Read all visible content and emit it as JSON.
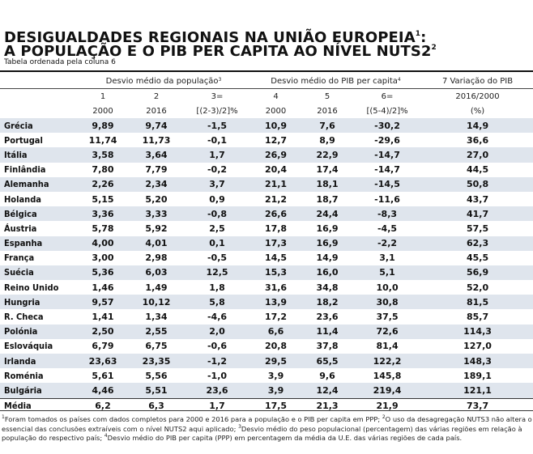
{
  "title": {
    "line1": "DESIGUALDADES REGIONAIS NA UNIÃO EUROPEIA",
    "line1_sup": "1",
    "line1_suffix": ":",
    "line2": "A POPULAÇÃO E O PIB PER CAPITA AO NÍVEL NUTS2",
    "line2_sup": "2"
  },
  "subtitle": "Tabela ordenada pela coluna 6",
  "headers": {
    "group_pop": "Desvio médio da população",
    "group_pop_sup": "3",
    "group_pib": "Desvio médio do PIB per capita",
    "group_pib_sup": "4",
    "group_var": "7 Variação do PIB",
    "col_numbers": [
      "1",
      "2",
      "3=",
      "4",
      "5",
      "6=",
      "2016/2000"
    ],
    "col_sub": [
      "2000",
      "2016",
      "[(2-3)/2]%",
      "2000",
      "2016",
      "[(5-4)/2]%",
      "(%)"
    ]
  },
  "rows": [
    {
      "country": "Grécia",
      "v": [
        "9,89",
        "9,74",
        "-1,5",
        "10,9",
        "7,6",
        "-30,2",
        "14,9"
      ]
    },
    {
      "country": "Portugal",
      "v": [
        "11,74",
        "11,73",
        "-0,1",
        "12,7",
        "8,9",
        "-29,6",
        "36,6"
      ]
    },
    {
      "country": "Itália",
      "v": [
        "3,58",
        "3,64",
        "1,7",
        "26,9",
        "22,9",
        "-14,7",
        "27,0"
      ]
    },
    {
      "country": "Finlândia",
      "v": [
        "7,80",
        "7,79",
        "-0,2",
        "20,4",
        "17,4",
        "-14,7",
        "44,5"
      ]
    },
    {
      "country": "Alemanha",
      "v": [
        "2,26",
        "2,34",
        "3,7",
        "21,1",
        "18,1",
        "-14,5",
        "50,8"
      ]
    },
    {
      "country": "Holanda",
      "v": [
        "5,15",
        "5,20",
        "0,9",
        "21,2",
        "18,7",
        "-11,6",
        "43,7"
      ]
    },
    {
      "country": "Bélgica",
      "v": [
        "3,36",
        "3,33",
        "-0,8",
        "26,6",
        "24,4",
        "-8,3",
        "41,7"
      ]
    },
    {
      "country": "Áustria",
      "v": [
        "5,78",
        "5,92",
        "2,5",
        "17,8",
        "16,9",
        "-4,5",
        "57,5"
      ]
    },
    {
      "country": "Espanha",
      "v": [
        "4,00",
        "4,01",
        "0,1",
        "17,3",
        "16,9",
        "-2,2",
        "62,3"
      ]
    },
    {
      "country": "França",
      "v": [
        "3,00",
        "2,98",
        "-0,5",
        "14,5",
        "14,9",
        "3,1",
        "45,5"
      ]
    },
    {
      "country": "Suécia",
      "v": [
        "5,36",
        "6,03",
        "12,5",
        "15,3",
        "16,0",
        "5,1",
        "56,9"
      ]
    },
    {
      "country": "Reino Unido",
      "v": [
        "1,46",
        "1,49",
        "1,8",
        "31,6",
        "34,8",
        "10,0",
        "52,0"
      ]
    },
    {
      "country": "Hungria",
      "v": [
        "9,57",
        "10,12",
        "5,8",
        "13,9",
        "18,2",
        "30,8",
        "81,5"
      ]
    },
    {
      "country": "R. Checa",
      "v": [
        "1,41",
        "1,34",
        "-4,6",
        "17,2",
        "23,6",
        "37,5",
        "85,7"
      ]
    },
    {
      "country": "Polónia",
      "v": [
        "2,50",
        "2,55",
        "2,0",
        "6,6",
        "11,4",
        "72,6",
        "114,3"
      ]
    },
    {
      "country": "Eslováquia",
      "v": [
        "6,79",
        "6,75",
        "-0,6",
        "20,8",
        "37,8",
        "81,4",
        "127,0"
      ]
    },
    {
      "country": "Irlanda",
      "v": [
        "23,63",
        "23,35",
        "-1,2",
        "29,5",
        "65,5",
        "122,2",
        "148,3"
      ]
    },
    {
      "country": "Roménia",
      "v": [
        "5,61",
        "5,56",
        "-1,0",
        "3,9",
        "9,6",
        "145,8",
        "189,1"
      ]
    },
    {
      "country": "Bulgária",
      "v": [
        "4,46",
        "5,51",
        "23,6",
        "3,9",
        "12,4",
        "219,4",
        "121,1"
      ]
    }
  ],
  "media": {
    "country": "Média",
    "v": [
      "6,2",
      "6,3",
      "1,7",
      "17,5",
      "21,3",
      "21,9",
      "73,7"
    ]
  },
  "notes": {
    "n1_sup": "1",
    "n1": "Foram tomados os países com dados completos para 2000 e 2016 para a população e o PIB per capita em PPP;",
    "n2_sup": "2",
    "n2": "O uso da desagregação NUTS3 não altera o essencial das conclusões extraíveis com o nível NUTS2 aqui aplicado;",
    "n3_sup": "3",
    "n3": "Desvio médio do peso populacional (percentagem) das várias regiões em relação à população do respectivo país;",
    "n4_sup": "4",
    "n4": "Desvio médio do PIB per capita (PPP) em percentagem da média da U.E. das várias regiões de cada país."
  },
  "colors": {
    "stripe": "#dfe5ed",
    "text": "#111111",
    "rule": "#111111"
  }
}
